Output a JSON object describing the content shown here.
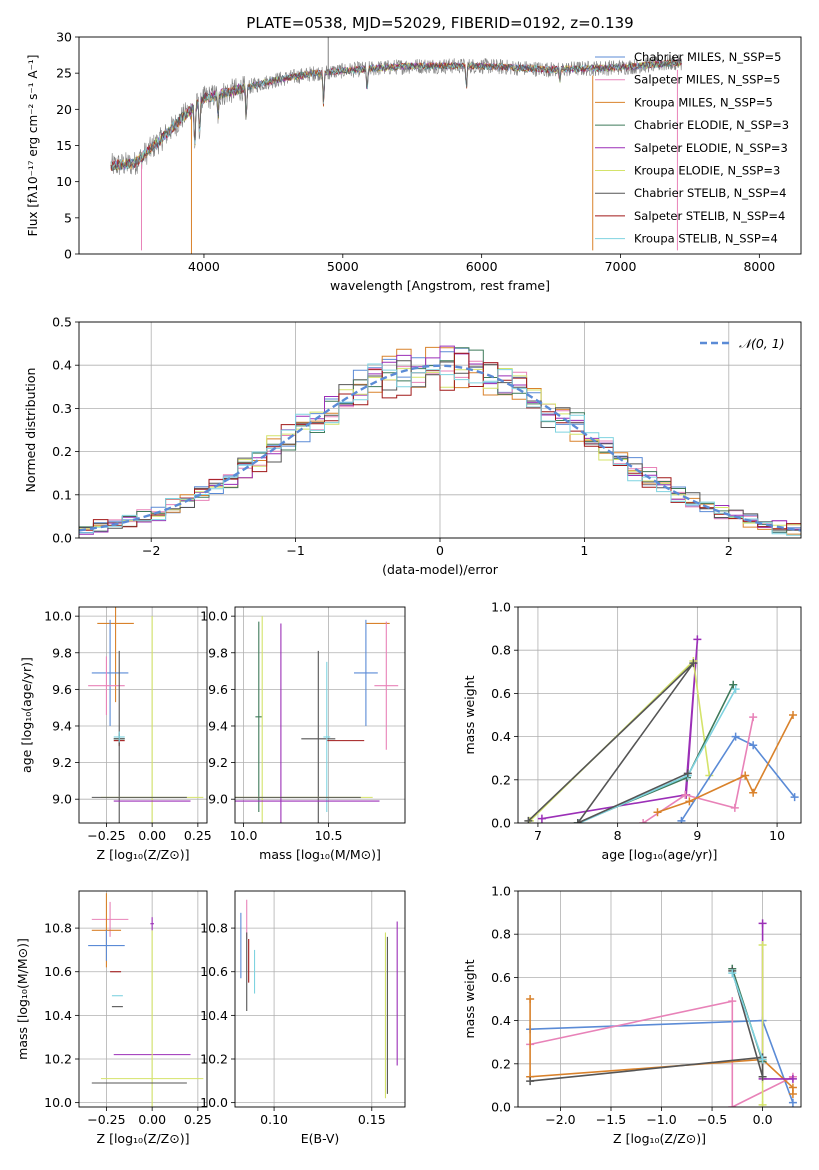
{
  "figure_title": "PLATE=0538, MJD=52029, FIBERID=0192, z=0.139",
  "colors": {
    "chabrier_miles": "#5b8bd6",
    "salpeter_miles": "#e882b8",
    "kroupa_miles": "#d9822b",
    "chabrier_elodie": "#3f7a5a",
    "salpeter_elodie": "#9b2fb7",
    "kroupa_elodie": "#d4e36a",
    "chabrier_stelib": "#555555",
    "salpeter_stelib": "#a01818",
    "kroupa_stelib": "#7fd3e0",
    "spectrum_gray": "#808080",
    "gaussian": "#5b8bd6"
  },
  "chart_data": [
    {
      "type": "line",
      "id": "spectrum",
      "title": "PLATE=0538, MJD=52029, FIBERID=0192, z=0.139",
      "xlabel": "wavelength [Angstrom, rest frame]",
      "ylabel": "Flux [fλ10⁻¹⁷ erg cm⁻² s⁻¹ A⁻¹]",
      "xlim": [
        3100,
        8300
      ],
      "ylim": [
        0,
        30
      ],
      "xticks": [
        4000,
        5000,
        6000,
        7000,
        8000
      ],
      "yticks": [
        0,
        5,
        10,
        15,
        20,
        25,
        30
      ],
      "legend_position": "top-right",
      "legend": [
        "Chabrier MILES, N_SSP=5",
        "Salpeter MILES, N_SSP=5",
        "Kroupa MILES, N_SSP=5",
        "Chabrier ELODIE, N_SSP=3",
        "Salpeter ELODIE, N_SSP=3",
        "Kroupa ELODIE, N_SSP=3",
        "Chabrier STELIB, N_SSP=4",
        "Salpeter STELIB, N_SSP=4",
        "Kroupa STELIB, N_SSP=4"
      ],
      "continuum_anchor_points": [
        [
          3330,
          12.2
        ],
        [
          3500,
          12.5
        ],
        [
          3700,
          16
        ],
        [
          3850,
          19
        ],
        [
          4000,
          21.5
        ],
        [
          4200,
          22.5
        ],
        [
          4500,
          24
        ],
        [
          4800,
          25
        ],
        [
          5100,
          25.5
        ],
        [
          5500,
          26
        ],
        [
          6000,
          26
        ],
        [
          6500,
          25.5
        ],
        [
          7000,
          25.8
        ],
        [
          7440,
          26.5
        ]
      ],
      "absorption_features": [
        [
          3934,
          15
        ],
        [
          3969,
          16.5
        ],
        [
          4102,
          19
        ],
        [
          4304,
          18.5
        ],
        [
          4861,
          20.5
        ],
        [
          5175,
          22.5
        ],
        [
          5890,
          23
        ],
        [
          6563,
          24
        ]
      ],
      "spike_features": [
        [
          3550,
          0.5,
          "salpeter_miles"
        ],
        [
          3910,
          0,
          "kroupa_miles"
        ],
        [
          4895,
          30,
          "spectrum_gray"
        ],
        [
          6800,
          0.5,
          "kroupa_miles"
        ],
        [
          7410,
          0.5,
          "salpeter_miles"
        ]
      ]
    },
    {
      "type": "bar",
      "id": "residual_hist",
      "xlabel": "(data-model)/error",
      "ylabel": "Normed distribution",
      "xlim": [
        -2.5,
        2.5
      ],
      "ylim": [
        0,
        0.5
      ],
      "xticks": [
        -2,
        -1,
        0,
        1,
        2
      ],
      "yticks": [
        0.0,
        0.1,
        0.2,
        0.3,
        0.4,
        0.5
      ],
      "grid": true,
      "bin_width": 0.1,
      "legend_position": "top-right",
      "legend": [
        "𝒩(0, 1)"
      ]
    },
    {
      "type": "scatter",
      "id": "age_vs_z",
      "xlabel": "Z [log₁₀(Z/Z⊙)]",
      "ylabel": "age  [log₁₀(age/yr)]",
      "xlim": [
        -0.4,
        0.3
      ],
      "ylim": [
        8.87,
        10.05
      ],
      "xticks": [
        -0.25,
        0.0,
        0.25
      ],
      "yticks": [
        9.0,
        9.2,
        9.4,
        9.6,
        9.8,
        10.0
      ],
      "grid": true,
      "points": [
        {
          "color": "kroupa_miles",
          "x": -0.2,
          "xerr": 0.1,
          "y": 9.96,
          "yerr": 0.43
        },
        {
          "color": "chabrier_miles",
          "x": -0.23,
          "xerr": 0.1,
          "y": 9.69,
          "yerr": 0.29
        },
        {
          "color": "salpeter_miles",
          "x": -0.25,
          "xerr": 0.1,
          "y": 9.62,
          "yerr": 0.16
        },
        {
          "color": "chabrier_elodie",
          "x": -0.18,
          "xerr": 0.03,
          "y": 9.33,
          "yerr": 0.03
        },
        {
          "color": "salpeter_stelib",
          "x": -0.18,
          "xerr": 0.03,
          "y": 9.32,
          "yerr": 0.03
        },
        {
          "color": "chabrier_stelib",
          "x": -0.18,
          "xerr": 0.03,
          "y": 9.33,
          "yerr": 0.48
        },
        {
          "color": "kroupa_stelib",
          "x": -0.18,
          "xerr": 0.03,
          "y": 9.34,
          "yerr": 0.03
        },
        {
          "color": "kroupa_elodie",
          "x": 0.0,
          "xerr": 0.28,
          "y": 9.01,
          "yerr": 0.99
        },
        {
          "color": "salpeter_elodie",
          "x": 0.0,
          "xerr": 0.21,
          "y": 8.99,
          "yerr": 0.0
        },
        {
          "color": "chabrier_stelib",
          "x": -0.07,
          "xerr": 0.26,
          "y": 9.01,
          "yerr": 0.0
        }
      ]
    },
    {
      "type": "scatter",
      "id": "age_vs_mass",
      "xlabel": "mass [log₁₀(M/M⊙)]",
      "xlim": [
        9.95,
        10.95
      ],
      "ylim": [
        8.87,
        10.05
      ],
      "xticks": [
        10.0,
        10.5
      ],
      "yticks": [
        9.0,
        9.2,
        9.4,
        9.6,
        9.8,
        10.0
      ],
      "grid": true,
      "points": [
        {
          "color": "kroupa_miles",
          "x": 10.79,
          "xerr": 0.07,
          "y": 9.96,
          "yerr": 0.0
        },
        {
          "color": "chabrier_miles",
          "x": 10.72,
          "xerr": 0.07,
          "y": 9.69,
          "yerr": 0.29
        },
        {
          "color": "salpeter_miles",
          "x": 10.84,
          "xerr": 0.07,
          "y": 9.62,
          "yerr": 0.35
        },
        {
          "color": "salpeter_stelib",
          "x": 10.6,
          "xerr": 0.11,
          "y": 9.32,
          "yerr": 0.0
        },
        {
          "color": "chabrier_stelib",
          "x": 10.44,
          "xerr": 0.1,
          "y": 9.33,
          "yerr": 0.48
        },
        {
          "color": "kroupa_stelib",
          "x": 10.49,
          "xerr": 0.02,
          "y": 9.34,
          "yerr": 0.41
        },
        {
          "color": "chabrier_elodie",
          "x": 10.09,
          "xerr": 0.02,
          "y": 9.45,
          "yerr": 0.52
        },
        {
          "color": "kroupa_elodie",
          "x": 10.11,
          "xerr": 0.65,
          "y": 9.01,
          "yerr": 0.99
        },
        {
          "color": "salpeter_elodie",
          "x": 10.22,
          "xerr": 0.58,
          "y": 8.99,
          "yerr": 0.97
        },
        {
          "color": "chabrier_stelib",
          "x": 10.09,
          "xerr": 0.6,
          "y": 9.01,
          "yerr": 0.0
        }
      ]
    },
    {
      "type": "line",
      "id": "mass_weight_vs_age",
      "xlabel": "age  [log₁₀(age/yr)]",
      "ylabel": "mass weight",
      "xlim": [
        6.75,
        10.3
      ],
      "ylim": [
        0,
        1.0
      ],
      "xticks": [
        7,
        8,
        9,
        10
      ],
      "yticks": [
        0.0,
        0.2,
        0.4,
        0.6,
        0.8,
        1.0
      ],
      "grid": true,
      "series": [
        {
          "color": "salpeter_elodie",
          "x": [
            7.05,
            8.85,
            9.0,
            8.86
          ],
          "y": [
            0.02,
            0.13,
            0.85,
            0.13
          ]
        },
        {
          "color": "kroupa_elodie",
          "x": [
            6.9,
            8.95,
            9.15
          ],
          "y": [
            0.01,
            0.75,
            0.22
          ]
        },
        {
          "color": "chabrier_elodie",
          "x": [
            7.5,
            8.87,
            9.45
          ],
          "y": [
            0.0,
            0.21,
            0.64
          ]
        },
        {
          "color": "kroupa_stelib",
          "x": [
            7.52,
            8.88,
            9.48
          ],
          "y": [
            0.0,
            0.22,
            0.62
          ]
        },
        {
          "color": "chabrier_stelib",
          "x": [
            6.88,
            8.95,
            7.5,
            8.88
          ],
          "y": [
            0.01,
            0.74,
            0.0,
            0.23
          ]
        },
        {
          "color": "chabrier_miles",
          "x": [
            8.8,
            9.48,
            9.7,
            10.22
          ],
          "y": [
            0.01,
            0.4,
            0.36,
            0.12
          ]
        },
        {
          "color": "salpeter_miles",
          "x": [
            8.32,
            8.85,
            9.47,
            9.7
          ],
          "y": [
            0.0,
            0.13,
            0.07,
            0.49
          ]
        },
        {
          "color": "kroupa_miles",
          "x": [
            8.5,
            8.9,
            9.6,
            9.7,
            10.2
          ],
          "y": [
            0.05,
            0.1,
            0.22,
            0.14,
            0.5
          ]
        }
      ]
    },
    {
      "type": "scatter",
      "id": "mass_vs_z",
      "xlabel": "Z [log₁₀(Z/Z⊙)]",
      "ylabel": "mass [log₁₀(M/M⊙)]",
      "xlim": [
        -0.4,
        0.3
      ],
      "ylim": [
        9.98,
        10.97
      ],
      "xticks": [
        -0.25,
        0.0,
        0.25
      ],
      "yticks": [
        10.0,
        10.2,
        10.4,
        10.6,
        10.8
      ],
      "grid": true,
      "points": [
        {
          "color": "salpeter_miles",
          "x": -0.23,
          "xerr": 0.1,
          "y": 10.84,
          "yerr": 0.08
        },
        {
          "color": "kroupa_miles",
          "x": -0.25,
          "xerr": 0.08,
          "y": 10.79,
          "yerr": 0.17
        },
        {
          "color": "chabrier_miles",
          "x": -0.25,
          "xerr": 0.1,
          "y": 10.72,
          "yerr": 0.07
        },
        {
          "color": "salpeter_stelib",
          "x": -0.2,
          "xerr": 0.03,
          "y": 10.6,
          "yerr": 0.0
        },
        {
          "color": "kroupa_stelib",
          "x": -0.19,
          "xerr": 0.03,
          "y": 10.49,
          "yerr": 0.0
        },
        {
          "color": "chabrier_stelib",
          "x": -0.19,
          "xerr": 0.03,
          "y": 10.44,
          "yerr": 0.0
        },
        {
          "color": "salpeter_elodie",
          "x": 0.0,
          "xerr": 0.21,
          "y": 10.22,
          "yerr": 0.0
        },
        {
          "color": "kroupa_elodie",
          "x": 0.0,
          "xerr": 0.28,
          "y": 10.11,
          "yerr": 0.68
        },
        {
          "color": "chabrier_stelib",
          "x": -0.07,
          "xerr": 0.26,
          "y": 10.09,
          "yerr": 0.0
        },
        {
          "color": "salpeter_elodie",
          "x": 0.0,
          "xerr": 0.01,
          "y": 10.82,
          "yerr": 0.03
        }
      ]
    },
    {
      "type": "scatter",
      "id": "mass_vs_ebv",
      "xlabel": "E(B-V)",
      "xlim": [
        0.08,
        0.167
      ],
      "ylim": [
        9.98,
        10.97
      ],
      "xticks": [
        0.1,
        0.15
      ],
      "yticks": [
        10.0,
        10.2,
        10.4,
        10.6,
        10.8
      ],
      "grid": true,
      "points": [
        {
          "color": "chabrier_miles",
          "x": 0.083,
          "xerr": 0.0,
          "y": 10.72,
          "yerr": 0.15
        },
        {
          "color": "salpeter_miles",
          "x": 0.086,
          "xerr": 0.0,
          "y": 10.84,
          "yerr": 0.09
        },
        {
          "color": "chabrier_stelib",
          "x": 0.086,
          "xerr": 0.0,
          "y": 10.6,
          "yerr": 0.18
        },
        {
          "color": "salpeter_stelib",
          "x": 0.087,
          "xerr": 0.0,
          "y": 10.65,
          "yerr": 0.1
        },
        {
          "color": "kroupa_stelib",
          "x": 0.09,
          "xerr": 0.0,
          "y": 10.6,
          "yerr": 0.1
        },
        {
          "color": "kroupa_elodie",
          "x": 0.157,
          "xerr": 0.0,
          "y": 10.4,
          "yerr": 0.38
        },
        {
          "color": "chabrier_stelib",
          "x": 0.158,
          "xerr": 0.0,
          "y": 10.4,
          "yerr": 0.36
        },
        {
          "color": "salpeter_elodie",
          "x": 0.163,
          "xerr": 0.0,
          "y": 10.5,
          "yerr": 0.33
        }
      ]
    },
    {
      "type": "line",
      "id": "mass_weight_vs_z",
      "xlabel": "Z [log₁₀(Z/Z⊙)]",
      "ylabel": "mass weight",
      "xlim": [
        -2.42,
        0.38
      ],
      "ylim": [
        0,
        1.0
      ],
      "xticks": [
        -2.0,
        -1.5,
        -1.0,
        -0.5,
        0.0
      ],
      "yticks": [
        0.0,
        0.2,
        0.4,
        0.6,
        0.8,
        1.0
      ],
      "grid": true,
      "series": [
        {
          "color": "chabrier_miles",
          "x": [
            -2.3,
            0.0,
            0.3
          ],
          "y": [
            0.36,
            0.4,
            0.02
          ]
        },
        {
          "color": "salpeter_miles",
          "x": [
            -2.3,
            -0.3,
            -0.3,
            0.3
          ],
          "y": [
            0.29,
            0.49,
            0.0,
            0.14
          ]
        },
        {
          "color": "kroupa_miles",
          "x": [
            -2.3,
            -2.3,
            0.0,
            0.3,
            0.3
          ],
          "y": [
            0.5,
            0.14,
            0.22,
            0.09,
            0.06
          ]
        },
        {
          "color": "chabrier_elodie",
          "x": [
            -0.3,
            0.0
          ],
          "y": [
            0.64,
            0.21
          ]
        },
        {
          "color": "salpeter_elodie",
          "x": [
            0.0,
            0.0,
            0.3
          ],
          "y": [
            0.85,
            0.13,
            0.13
          ]
        },
        {
          "color": "kroupa_elodie",
          "x": [
            0.0,
            0.0
          ],
          "y": [
            0.75,
            0.01
          ]
        },
        {
          "color": "chabrier_stelib",
          "x": [
            -0.3,
            0.0,
            0.0,
            -2.3
          ],
          "y": [
            0.63,
            0.14,
            0.23,
            0.12
          ]
        },
        {
          "color": "kroupa_stelib",
          "x": [
            -0.3,
            0.0
          ],
          "y": [
            0.62,
            0.22
          ]
        }
      ]
    }
  ]
}
